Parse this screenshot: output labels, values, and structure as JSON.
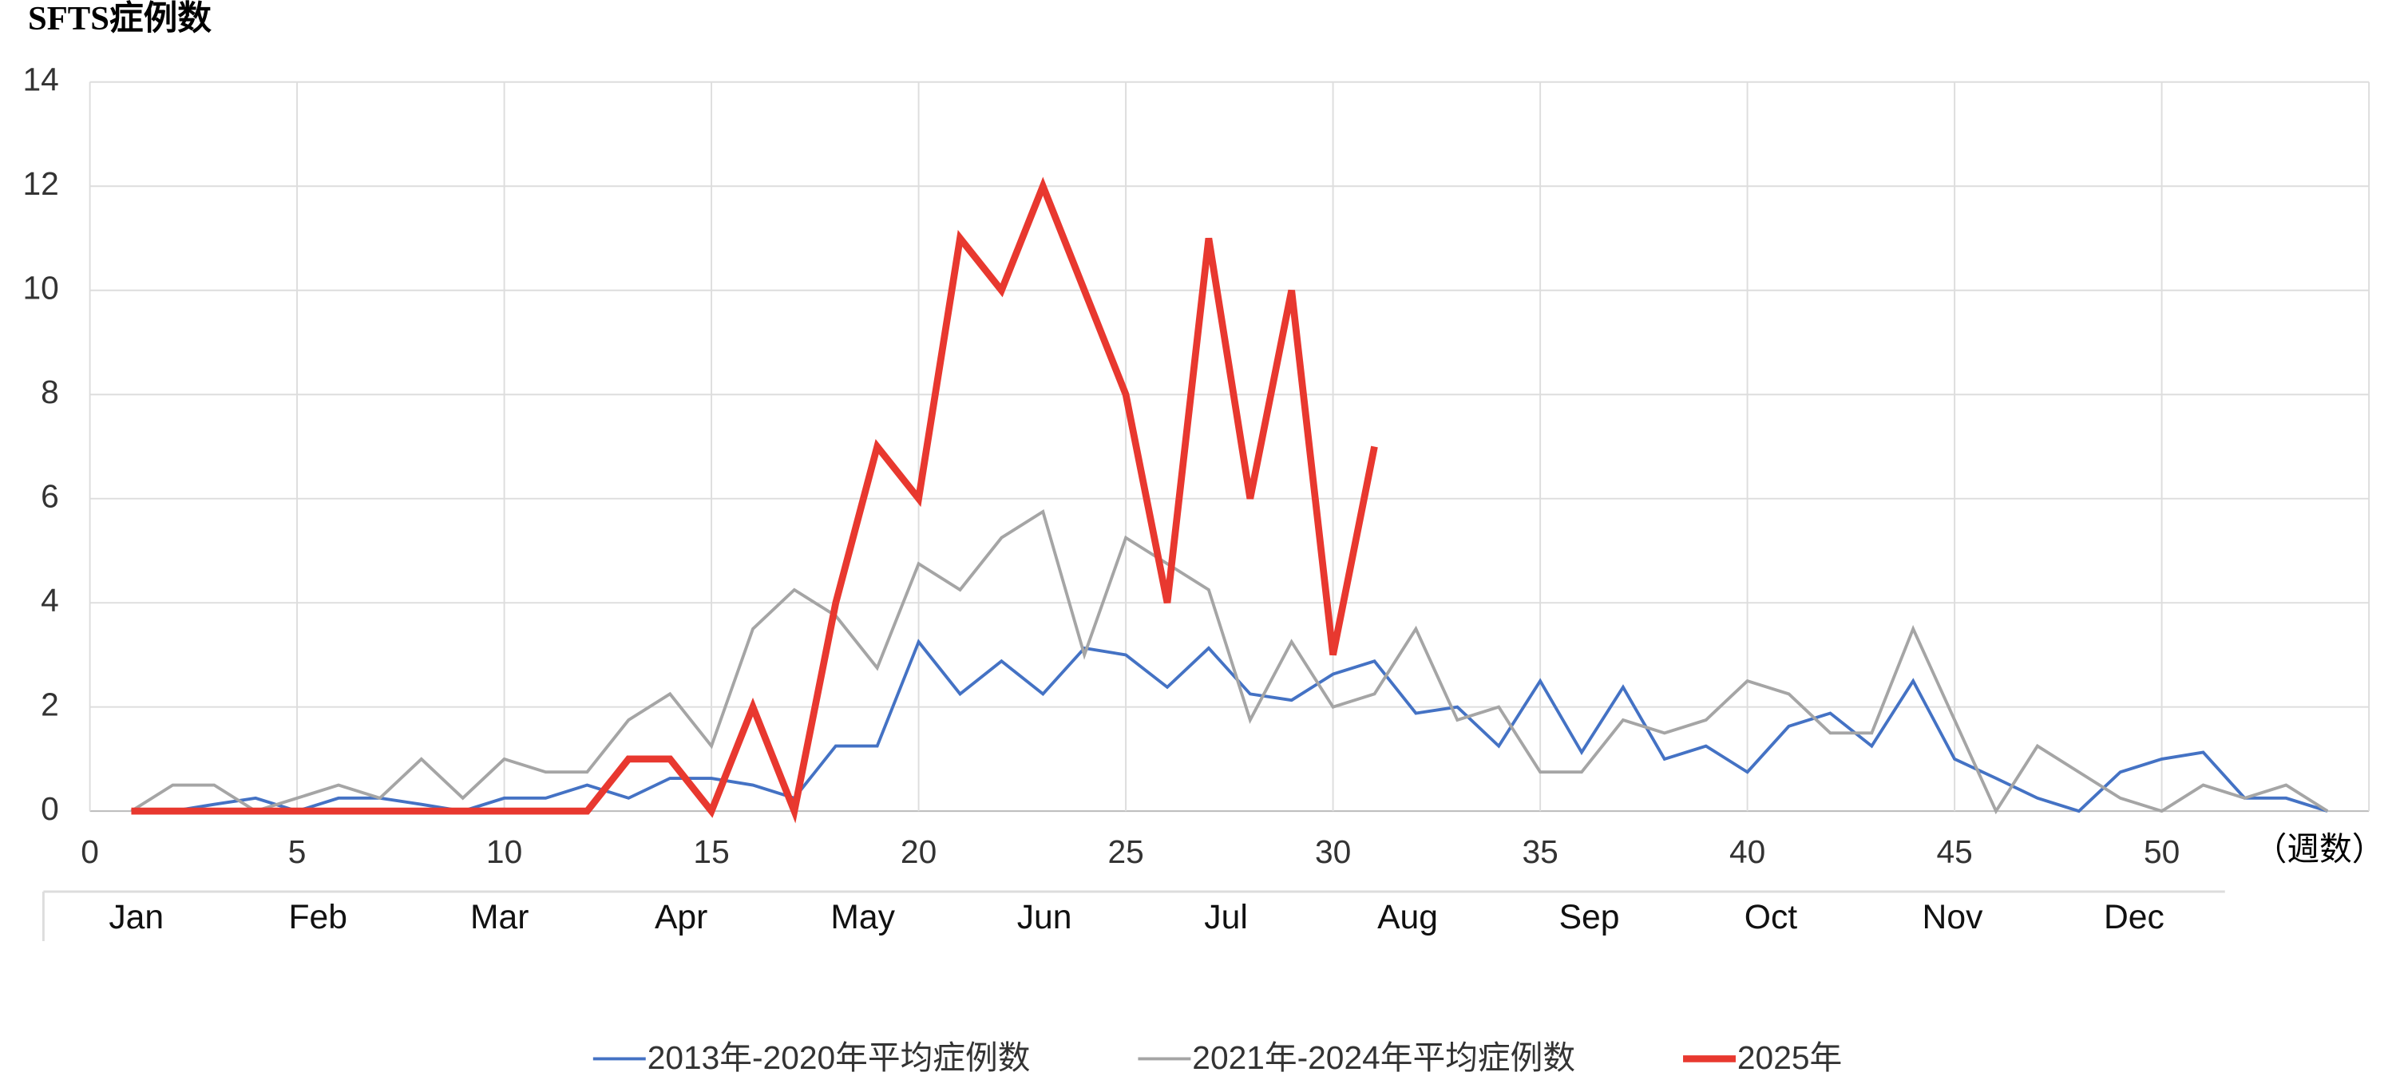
{
  "chart_data": {
    "type": "line",
    "title": "SFTS症例数",
    "x_label": "（週数）",
    "x": [
      1,
      2,
      3,
      4,
      5,
      6,
      7,
      8,
      9,
      10,
      11,
      12,
      13,
      14,
      15,
      16,
      17,
      18,
      19,
      20,
      21,
      22,
      23,
      24,
      25,
      26,
      27,
      28,
      29,
      30,
      31,
      32,
      33,
      34,
      35,
      36,
      37,
      38,
      39,
      40,
      41,
      42,
      43,
      44,
      45,
      46,
      47,
      48,
      49,
      50,
      51,
      52,
      53,
      54
    ],
    "series": [
      {
        "name": "2013年-2020年平均症例数",
        "color": "#4472c4",
        "width": 2,
        "values": [
          0,
          0,
          0.13,
          0.25,
          0,
          0.25,
          0.25,
          0.13,
          0,
          0.25,
          0.25,
          0.5,
          0.25,
          0.63,
          0.63,
          0.5,
          0.25,
          1.25,
          1.25,
          3.25,
          2.25,
          2.88,
          2.25,
          3.13,
          3,
          2.38,
          3.13,
          2.25,
          2.13,
          2.63,
          2.88,
          1.88,
          2,
          1.25,
          2.5,
          1.13,
          2.38,
          1,
          1.25,
          0.75,
          1.63,
          1.88,
          1.25,
          2.5,
          1,
          0.63,
          0.25,
          0,
          0.75,
          1,
          1.13,
          0.25,
          0.25,
          0
        ]
      },
      {
        "name": "2021年-2024年平均症例数",
        "color": "#a5a5a5",
        "width": 2,
        "values": [
          0,
          0.5,
          0.5,
          0,
          0.25,
          0.5,
          0.25,
          1,
          0.25,
          1,
          0.75,
          0.75,
          1.75,
          2.25,
          1.25,
          3.5,
          4.25,
          3.75,
          2.75,
          4.75,
          4.25,
          5.25,
          5.75,
          3,
          5.25,
          4.75,
          4.25,
          1.75,
          3.25,
          2,
          2.25,
          3.5,
          1.75,
          2,
          0.75,
          0.75,
          1.75,
          1.5,
          1.75,
          2.5,
          2.25,
          1.5,
          1.5,
          3.5,
          1.75,
          0,
          1.25,
          0.75,
          0.25,
          0,
          0.5,
          0.25,
          0.5,
          0
        ]
      },
      {
        "name": "2025年",
        "color": "#e8382f",
        "width": 4.5,
        "values": [
          0,
          0,
          0,
          0,
          0,
          0,
          0,
          0,
          0,
          0,
          0,
          0,
          1,
          1,
          0,
          2,
          0,
          4,
          7,
          6,
          11,
          10,
          12,
          10,
          8,
          4,
          11,
          6,
          10,
          3,
          7,
          null,
          null,
          null,
          null,
          null,
          null,
          null,
          null,
          null,
          null,
          null,
          null,
          null,
          null,
          null,
          null,
          null,
          null,
          null,
          null,
          null,
          null,
          null
        ]
      }
    ],
    "xlim": [
      0,
      55
    ],
    "xticks": [
      0,
      5,
      10,
      15,
      20,
      25,
      30,
      35,
      40,
      45,
      50
    ],
    "ylim": [
      0,
      14
    ],
    "yticks": [
      0,
      2,
      4,
      6,
      8,
      10,
      12,
      14
    ],
    "grid": true,
    "legend": "bottom",
    "month_labels": [
      "Jan",
      "Feb",
      "Mar",
      "Apr",
      "May",
      "Jun",
      "Jul",
      "Aug",
      "Sep",
      "Oct",
      "Nov",
      "Dec"
    ]
  }
}
